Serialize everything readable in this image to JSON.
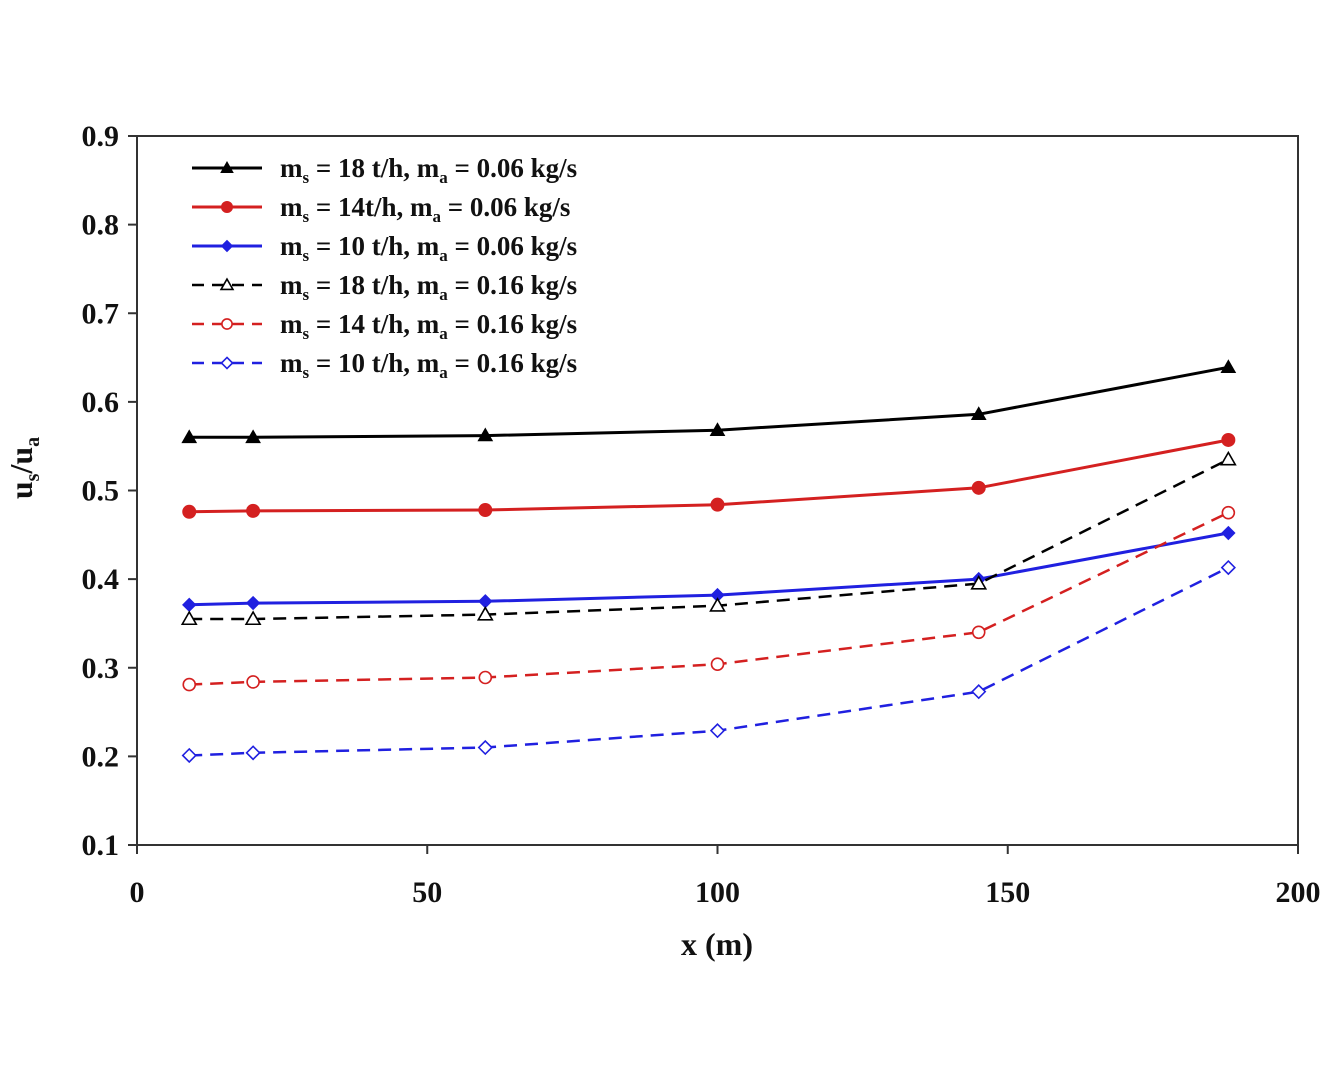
{
  "chart_data": {
    "type": "line",
    "xlabel": "x (m)",
    "ylabel": {
      "parts": [
        "u",
        "s",
        "/u",
        "a"
      ]
    },
    "xlim": [
      0,
      200
    ],
    "ylim": [
      0.1,
      0.9
    ],
    "xticks": [
      "0",
      "50",
      "100",
      "150",
      "200"
    ],
    "yticks": [
      "0.1",
      "0.2",
      "0.3",
      "0.4",
      "0.5",
      "0.6",
      "0.7",
      "0.8",
      "0.9"
    ],
    "grid": false,
    "legend_position": "top-left",
    "x": [
      9,
      20,
      60,
      100,
      145,
      188
    ],
    "series": [
      {
        "name": "m_s = 18 t/h, m_a = 0.06 kg/s",
        "label_parts": [
          "m",
          "s",
          " = 18 t/h, m",
          "a",
          " = 0.06 kg/s"
        ],
        "color": "#000000",
        "dashed": false,
        "marker": "triangle",
        "filled": true,
        "values": [
          0.56,
          0.56,
          0.562,
          0.568,
          0.586,
          0.639
        ]
      },
      {
        "name": "m_s = 14t/h, m_a = 0.06 kg/s",
        "label_parts": [
          "m",
          "s",
          " = 14t/h,  m",
          "a",
          " = 0.06 kg/s"
        ],
        "color": "#d42020",
        "dashed": false,
        "marker": "circle",
        "filled": true,
        "values": [
          0.476,
          0.477,
          0.478,
          0.484,
          0.503,
          0.557
        ]
      },
      {
        "name": "m_s = 10 t/h, m_a = 0.06 kg/s",
        "label_parts": [
          "m",
          "s",
          " = 10 t/h, m",
          "a",
          " = 0.06 kg/s"
        ],
        "color": "#2020e0",
        "dashed": false,
        "marker": "diamond",
        "filled": true,
        "values": [
          0.371,
          0.373,
          0.375,
          0.382,
          0.4,
          0.452
        ]
      },
      {
        "name": "m_s = 18 t/h, m_a = 0.16 kg/s",
        "label_parts": [
          "m",
          "s",
          " = 18 t/h, m",
          "a",
          " = 0.16 kg/s"
        ],
        "color": "#000000",
        "dashed": true,
        "marker": "triangle",
        "filled": false,
        "values": [
          0.355,
          0.355,
          0.36,
          0.37,
          0.395,
          0.535
        ]
      },
      {
        "name": "m_s = 14 t/h, m_a = 0.16 kg/s",
        "label_parts": [
          "m",
          "s",
          " = 14 t/h, m",
          "a",
          " = 0.16 kg/s"
        ],
        "color": "#d42020",
        "dashed": true,
        "marker": "circle",
        "filled": false,
        "values": [
          0.281,
          0.284,
          0.289,
          0.304,
          0.34,
          0.475
        ]
      },
      {
        "name": "m_s = 10 t/h, m_a = 0.16 kg/s",
        "label_parts": [
          "m",
          "s",
          " = 10 t/h, m",
          "a",
          " = 0.16 kg/s"
        ],
        "color": "#2020e0",
        "dashed": true,
        "marker": "diamond",
        "filled": false,
        "values": [
          0.201,
          0.204,
          0.21,
          0.229,
          0.273,
          0.413
        ]
      }
    ]
  }
}
